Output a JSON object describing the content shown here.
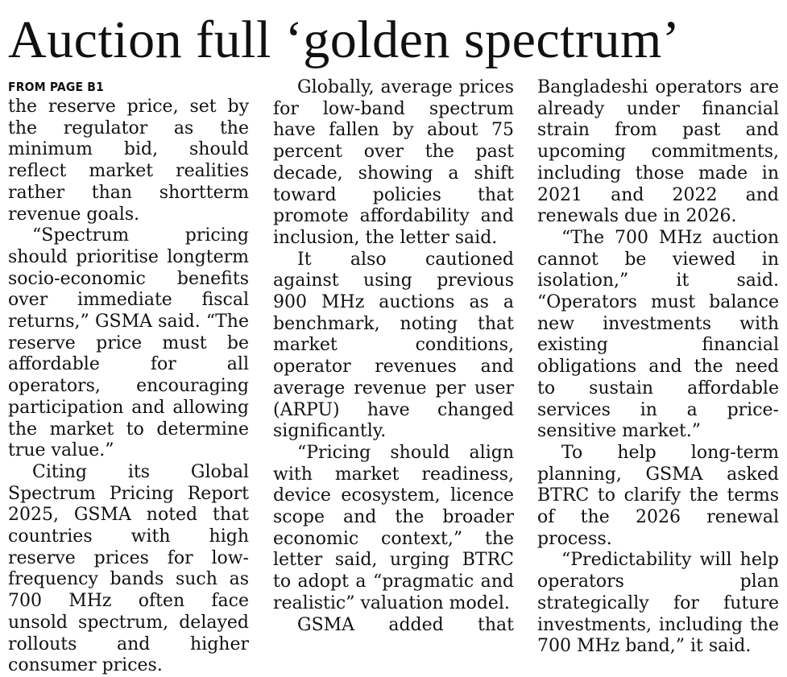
{
  "article": {
    "headline": "Auction full ‘golden spectrum’",
    "kicker": "FROM PAGE B1",
    "columns": [
      [
        "the reserve price, set by the regulator as the minimum bid, should reflect market realities rather than short­term revenue goals.",
        "“Spectrum pricing should prioritise long­term socio-economic benefits over immediate fiscal returns,” GSMA said. “The reserve price must be affordable for all operators, encouraging participation and allowing the market to determine true value.”",
        "Citing its Global Spectrum Pricing Report 2025, GSMA noted that countries with high reserve prices for low-frequency bands such as 700 MHz often face unsold spectrum, delayed rollouts and higher consumer prices."
      ],
      [
        "Globally, average prices for low-band spectrum have fallen by about 75 percent over the past decade, showing a shift toward policies that promote affordability and inclusion, the letter said.",
        "It also cautioned against using previous 900 MHz auctions as a benchmark, noting that market conditions, operator revenues and average revenue per user (ARPU) have changed significantly.",
        "“Pricing should align with market readiness, device ecosystem, licence scope and the broader economic context,” the letter said, urging BTRC to adopt a “pragmatic and realistic” valuation model.",
        "GSMA added that"
      ],
      [
        "Bangladeshi operators are already under financial strain from past and upcoming commitments, including those made in 2021 and 2022 and renewals due in 2026.",
        "“The 700 MHz auction cannot be viewed in isolation,” it said. “Operators must balance new investments with existing financial obligations and the need to sustain affordable services in a price-sensitive market.”",
        "To help long-term planning, GSMA asked BTRC to clarify the terms of the 2026 renewal process.",
        "“Predictability will help operators plan strategically for future investments, including the 700 MHz band,” it said."
      ]
    ]
  }
}
